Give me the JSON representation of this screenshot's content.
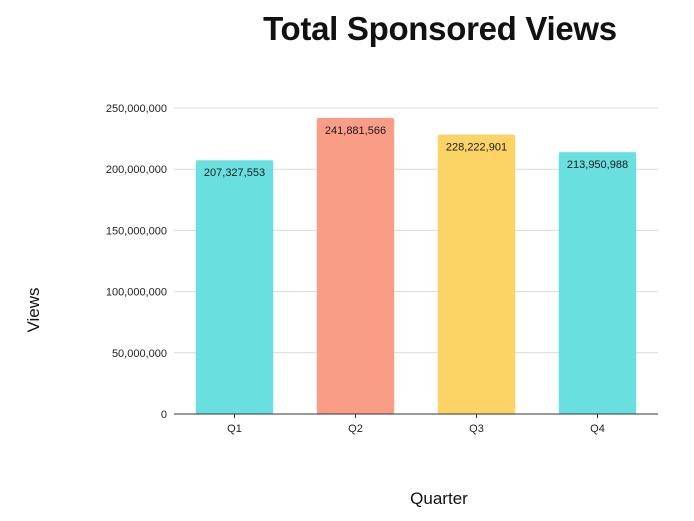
{
  "chart_data": {
    "type": "bar",
    "title": "Total Sponsored Views",
    "xlabel": "Quarter",
    "ylabel": "Views",
    "categories": [
      "Q1",
      "Q2",
      "Q3",
      "Q4"
    ],
    "values": [
      207327553,
      241881566,
      228222901,
      213950988
    ],
    "data_labels": [
      "207,327,553",
      "241,881,566",
      "228,222,901",
      "213,950,988"
    ],
    "bar_colors": [
      "#6adfe0",
      "#f99d87",
      "#fcd465",
      "#6adfe0"
    ],
    "ylim": [
      0,
      250000000
    ],
    "yticks": [
      0,
      50000000,
      100000000,
      150000000,
      200000000,
      250000000
    ],
    "ytick_labels": [
      "0",
      "50,000,000",
      "100,000,000",
      "150,000,000",
      "200,000,000",
      "250,000,000"
    ],
    "grid": true,
    "legend": "none"
  }
}
